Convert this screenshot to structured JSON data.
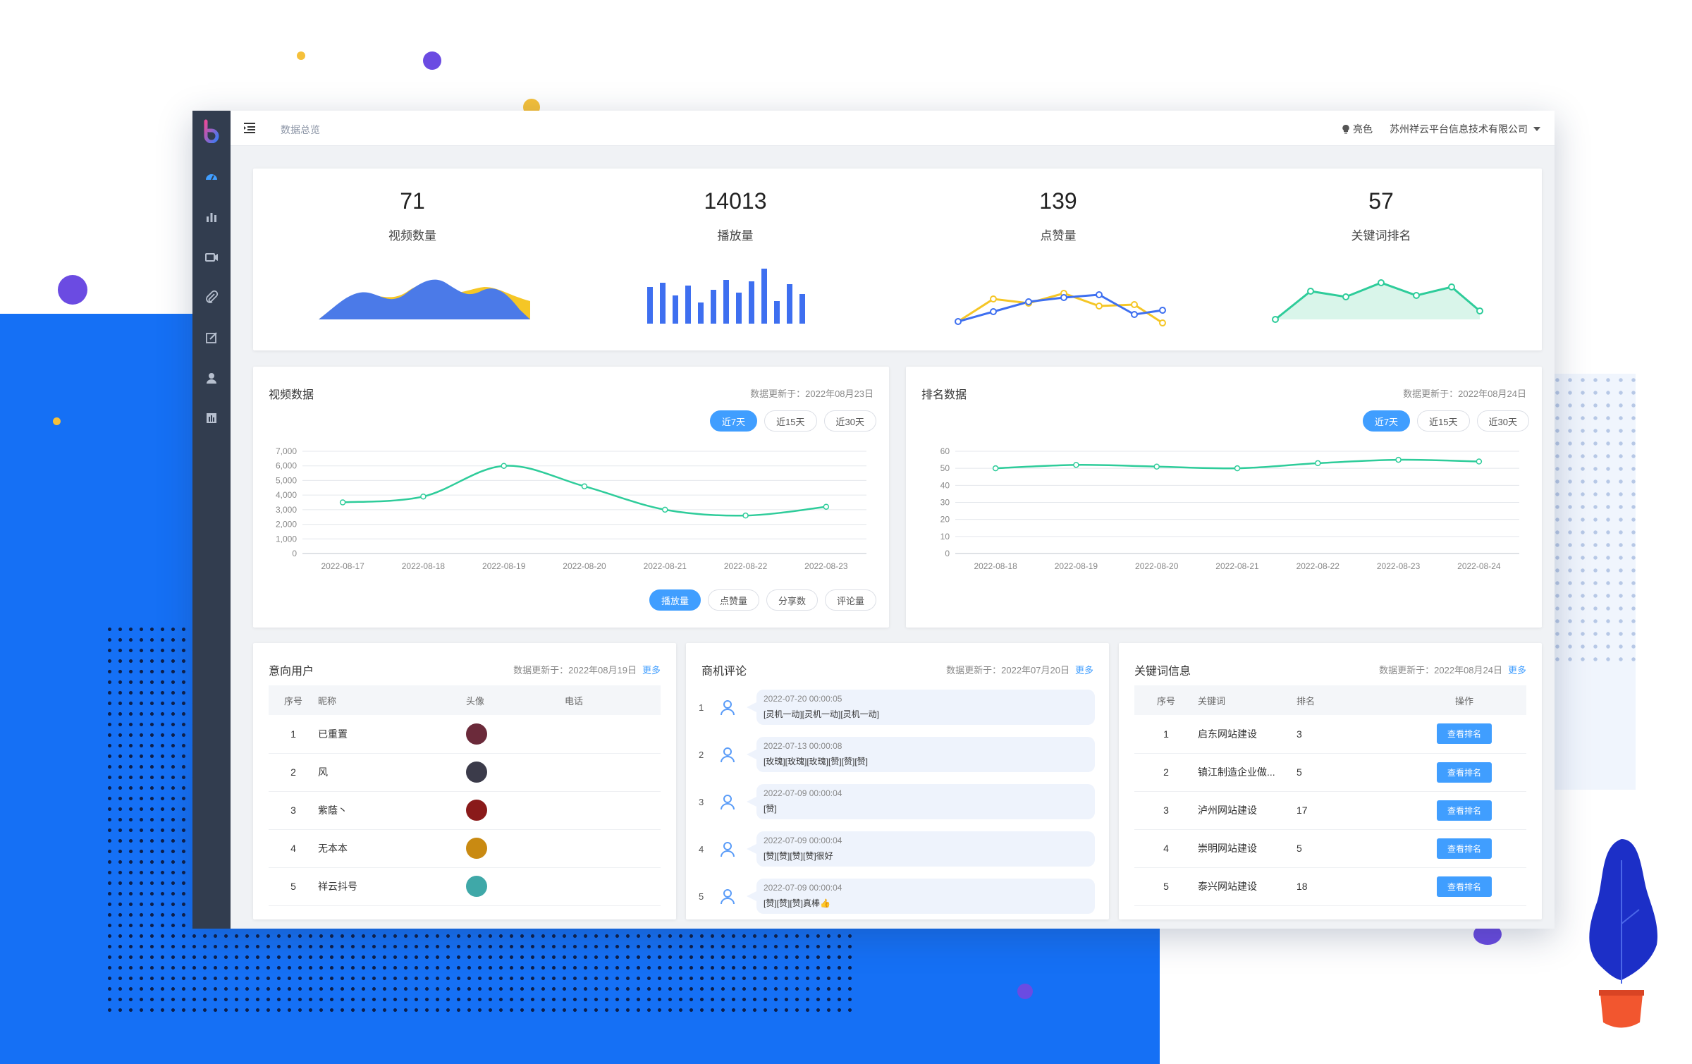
{
  "breadcrumb": "数据总览",
  "header": {
    "theme_label": "亮色",
    "company": "苏州祥云平台信息技术有限公司"
  },
  "stats": [
    {
      "value": "71",
      "label": "视频数量"
    },
    {
      "value": "14013",
      "label": "播放量"
    },
    {
      "value": "139",
      "label": "点赞量"
    },
    {
      "value": "57",
      "label": "关键词排名"
    }
  ],
  "video_card": {
    "title": "视频数据",
    "updated": "数据更新于：2022年08月23日",
    "ranges": [
      "近7天",
      "近15天",
      "近30天"
    ],
    "metrics": [
      "播放量",
      "点赞量",
      "分享数",
      "评论量"
    ]
  },
  "rank_card": {
    "title": "排名数据",
    "updated": "数据更新于：2022年08月24日",
    "ranges": [
      "近7天",
      "近15天",
      "近30天"
    ]
  },
  "users_card": {
    "title": "意向用户",
    "updated": "数据更新于：2022年08月19日",
    "more": "更多",
    "columns": [
      "序号",
      "昵称",
      "头像",
      "电话"
    ],
    "rows": [
      {
        "idx": "1",
        "name": "已重置",
        "avatar_color": "#6b2a3a"
      },
      {
        "idx": "2",
        "name": "风",
        "avatar_color": "#3b3b4a"
      },
      {
        "idx": "3",
        "name": "紫蔭丶",
        "avatar_color": "#8a1a1a"
      },
      {
        "idx": "4",
        "name": "无本本",
        "avatar_color": "#c98a12"
      },
      {
        "idx": "5",
        "name": "祥云抖号",
        "avatar_color": "#3fa8a8"
      }
    ]
  },
  "comments_card": {
    "title": "商机评论",
    "updated": "数据更新于：2022年07月20日",
    "more": "更多",
    "items": [
      {
        "idx": "1",
        "time": "2022-07-20 00:00:05",
        "text": "[灵机一动][灵机一动][灵机一动]"
      },
      {
        "idx": "2",
        "time": "2022-07-13 00:00:08",
        "text": "[玫瑰][玫瑰][玫瑰][赞][赞][赞]"
      },
      {
        "idx": "3",
        "time": "2022-07-09 00:00:04",
        "text": "[赞]"
      },
      {
        "idx": "4",
        "time": "2022-07-09 00:00:04",
        "text": "[赞][赞][赞][赞]很好"
      },
      {
        "idx": "5",
        "time": "2022-07-09 00:00:04",
        "text": "[赞][赞][赞]真棒👍"
      }
    ]
  },
  "keywords_card": {
    "title": "关键词信息",
    "updated": "数据更新于：2022年08月24日",
    "more": "更多",
    "columns": [
      "序号",
      "关键词",
      "排名",
      "操作"
    ],
    "button_label": "查看排名",
    "rows": [
      {
        "idx": "1",
        "keyword": "启东网站建设",
        "rank": "3"
      },
      {
        "idx": "2",
        "keyword": "镇江制造企业做...",
        "rank": "5"
      },
      {
        "idx": "3",
        "keyword": "泸州网站建设",
        "rank": "17"
      },
      {
        "idx": "4",
        "keyword": "崇明网站建设",
        "rank": "5"
      },
      {
        "idx": "5",
        "keyword": "泰兴网站建设",
        "rank": "18"
      }
    ]
  },
  "chart_data": [
    {
      "type": "line",
      "x": [
        "2022-08-17",
        "2022-08-18",
        "2022-08-19",
        "2022-08-20",
        "2022-08-21",
        "2022-08-22",
        "2022-08-23"
      ],
      "series": [
        {
          "values": [
            3500,
            3900,
            6000,
            4600,
            3000,
            2600,
            3200
          ]
        }
      ],
      "y_ticks": [
        "0",
        "1,000",
        "2,000",
        "3,000",
        "4,000",
        "5,000",
        "6,000",
        "7,000"
      ],
      "ylim": [
        0,
        7000
      ],
      "color": "#2ecc9a"
    },
    {
      "type": "line",
      "x": [
        "2022-08-18",
        "2022-08-19",
        "2022-08-20",
        "2022-08-21",
        "2022-08-22",
        "2022-08-23",
        "2022-08-24"
      ],
      "series": [
        {
          "values": [
            50,
            52,
            51,
            50,
            53,
            55,
            54
          ]
        }
      ],
      "y_ticks": [
        "0",
        "10",
        "20",
        "30",
        "40",
        "50",
        "60"
      ],
      "ylim": [
        0,
        60
      ],
      "color": "#2ecc9a"
    }
  ]
}
